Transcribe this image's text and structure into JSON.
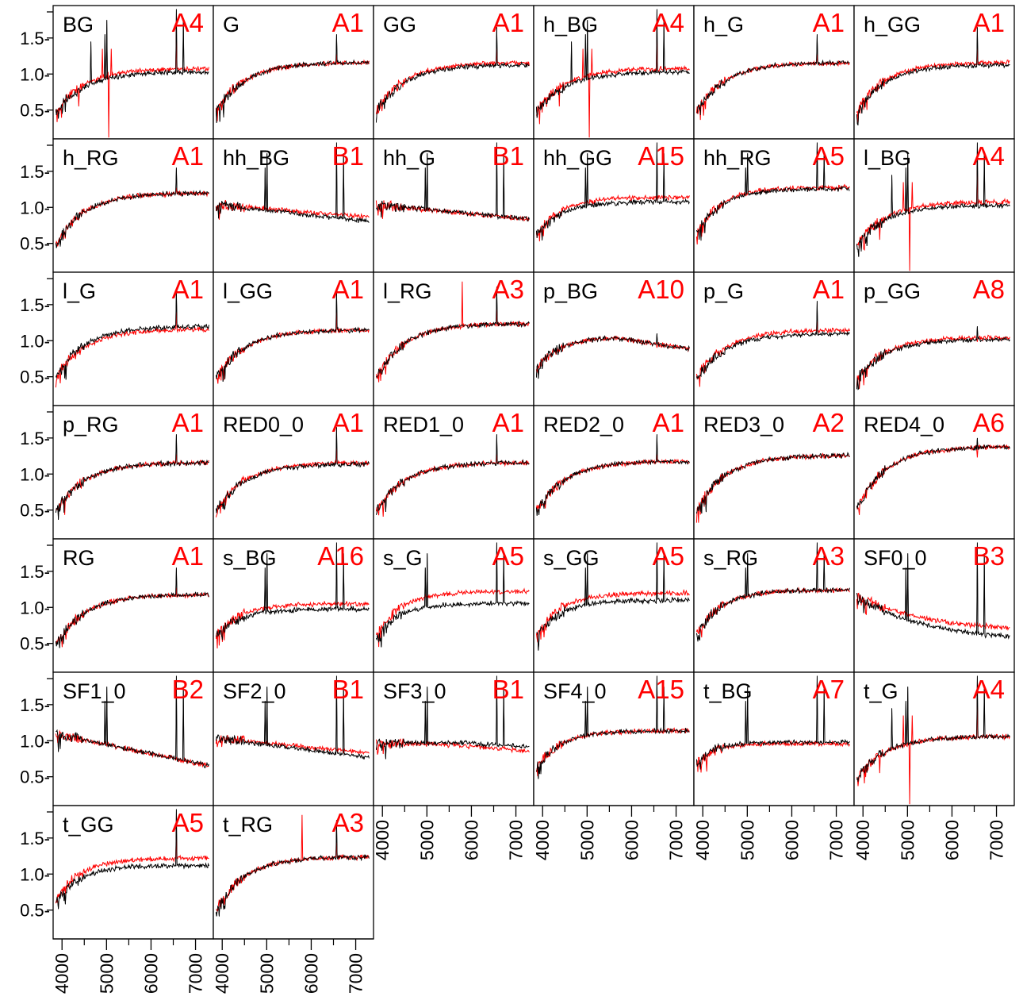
{
  "colors": {
    "model": "#000000",
    "observed": "#ff0000",
    "frame": "#000000"
  },
  "chart_data": {
    "type": "line",
    "layout": "small multiples, 6 columns x 7 rows",
    "xlim": [
      3800,
      7400
    ],
    "ylim": [
      0.1,
      1.95
    ],
    "x_ticks": [
      4000,
      5000,
      6000,
      7000
    ],
    "x_tick_labels": [
      "4000",
      "5000",
      "6000",
      "7000"
    ],
    "y_ticks": [
      0.5,
      1.0,
      1.5
    ],
    "y_tick_labels": [
      "0.5-",
      "1.0-",
      "1.5-"
    ],
    "series_colors": [
      "#000000",
      "#ff0000"
    ],
    "panels": [
      {
        "name": "BG",
        "code": "A4",
        "shape": "rise",
        "end": 1.03,
        "red_end": 1.08,
        "spikes": "strong",
        "halpha": 1.9
      },
      {
        "name": "G",
        "code": "A1",
        "shape": "rise",
        "end": 1.16,
        "red_end": 1.16,
        "spikes": "weak",
        "halpha": 1.55
      },
      {
        "name": "GG",
        "code": "A1",
        "shape": "rise",
        "end": 1.13,
        "red_end": 1.16,
        "spikes": "weak",
        "halpha": 1.65
      },
      {
        "name": "h_BG",
        "code": "A4",
        "shape": "rise",
        "end": 1.03,
        "red_end": 1.08,
        "spikes": "strong",
        "halpha": 1.9
      },
      {
        "name": "h_G",
        "code": "A1",
        "shape": "rise",
        "end": 1.16,
        "red_end": 1.16,
        "spikes": "weak",
        "halpha": 1.55
      },
      {
        "name": "h_GG",
        "code": "A1",
        "shape": "rise",
        "end": 1.13,
        "red_end": 1.16,
        "spikes": "weak",
        "halpha": 1.65
      },
      {
        "name": "h_RG",
        "code": "A1",
        "shape": "rise",
        "end": 1.2,
        "red_end": 1.2,
        "spikes": "weak",
        "halpha": 1.55
      },
      {
        "name": "hh_BG",
        "code": "B1",
        "shape": "flat_fall",
        "end": 0.8,
        "red_end": 0.86,
        "spikes": "emission",
        "halpha": 1.9
      },
      {
        "name": "hh_G",
        "code": "B1",
        "shape": "flat_fall",
        "end": 0.83,
        "red_end": 0.83,
        "spikes": "emission",
        "halpha": 1.9
      },
      {
        "name": "hh_GG",
        "code": "A15",
        "shape": "slow_rise",
        "end": 1.08,
        "red_end": 1.14,
        "spikes": "emission",
        "halpha": 1.9
      },
      {
        "name": "hh_RG",
        "code": "A5",
        "shape": "slow_rise",
        "end": 1.26,
        "red_end": 1.28,
        "spikes": "emission",
        "halpha": 1.9
      },
      {
        "name": "l_BG",
        "code": "A4",
        "shape": "rise",
        "end": 1.03,
        "red_end": 1.08,
        "spikes": "strong",
        "halpha": 1.9
      },
      {
        "name": "l_G",
        "code": "A1",
        "shape": "rise",
        "end": 1.2,
        "red_end": 1.16,
        "spikes": "weak",
        "halpha": 1.7
      },
      {
        "name": "l_GG",
        "code": "A1",
        "shape": "rise",
        "end": 1.15,
        "red_end": 1.15,
        "spikes": "weak",
        "halpha": 1.7
      },
      {
        "name": "l_RG",
        "code": "A3",
        "shape": "rise",
        "end": 1.24,
        "red_end": 1.24,
        "spikes": "red_peak",
        "halpha": 1.75
      },
      {
        "name": "p_BG",
        "code": "A10",
        "shape": "rise_fall",
        "end": 0.88,
        "red_end": 1.02,
        "spikes": "weak",
        "halpha": 1.1
      },
      {
        "name": "p_G",
        "code": "A1",
        "shape": "rise",
        "end": 1.1,
        "red_end": 1.15,
        "spikes": "weak",
        "halpha": 1.55
      },
      {
        "name": "p_GG",
        "code": "A8",
        "shape": "rise",
        "end": 1.02,
        "red_end": 1.05,
        "spikes": "weak",
        "halpha": 1.2
      },
      {
        "name": "p_RG",
        "code": "A1",
        "shape": "rise",
        "end": 1.16,
        "red_end": 1.16,
        "spikes": "weak",
        "halpha": 1.55
      },
      {
        "name": "RED0_0",
        "code": "A1",
        "shape": "rise",
        "end": 1.14,
        "red_end": 1.16,
        "spikes": "weak",
        "halpha": 1.65
      },
      {
        "name": "RED1_0",
        "code": "A1",
        "shape": "rise",
        "end": 1.16,
        "red_end": 1.16,
        "spikes": "weak",
        "halpha": 1.55
      },
      {
        "name": "RED2_0",
        "code": "A1",
        "shape": "rise",
        "end": 1.18,
        "red_end": 1.18,
        "spikes": "weak",
        "halpha": 1.55
      },
      {
        "name": "RED3_0",
        "code": "A2",
        "shape": "rise",
        "end": 1.26,
        "red_end": 1.26,
        "spikes": "none",
        "halpha": 1.3
      },
      {
        "name": "RED4_0",
        "code": "A6",
        "shape": "rise",
        "end": 1.38,
        "red_end": 1.38,
        "spikes": "weak",
        "halpha": 1.5
      },
      {
        "name": "RG",
        "code": "A1",
        "shape": "rise",
        "end": 1.18,
        "red_end": 1.18,
        "spikes": "weak",
        "halpha": 1.55
      },
      {
        "name": "s_BG",
        "code": "A16",
        "shape": "slow_rise",
        "end": 0.98,
        "red_end": 1.05,
        "spikes": "emission",
        "halpha": 1.9
      },
      {
        "name": "s_G",
        "code": "A5",
        "shape": "slow_rise",
        "end": 1.06,
        "red_end": 1.22,
        "spikes": "emission",
        "halpha": 1.9
      },
      {
        "name": "s_GG",
        "code": "A5",
        "shape": "slow_rise",
        "end": 1.1,
        "red_end": 1.2,
        "spikes": "emission",
        "halpha": 1.9
      },
      {
        "name": "s_RG",
        "code": "A3",
        "shape": "slow_rise",
        "end": 1.24,
        "red_end": 1.24,
        "spikes": "emission",
        "halpha": 1.9
      },
      {
        "name": "SF0_0",
        "code": "B3",
        "shape": "fall",
        "end": 0.52,
        "red_end": 0.66,
        "spikes": "emission",
        "halpha": 1.9
      },
      {
        "name": "SF1_0",
        "code": "B2",
        "shape": "fall_mild",
        "end": 0.64,
        "red_end": 0.64,
        "spikes": "emission",
        "halpha": 1.9
      },
      {
        "name": "SF2_0",
        "code": "B1",
        "shape": "flat_fall",
        "end": 0.76,
        "red_end": 0.82,
        "spikes": "emission",
        "halpha": 1.9
      },
      {
        "name": "SF3_0",
        "code": "B1",
        "shape": "flat",
        "end": 0.9,
        "red_end": 0.84,
        "spikes": "emission",
        "halpha": 1.9
      },
      {
        "name": "SF4_0",
        "code": "A15",
        "shape": "slow_rise",
        "end": 1.14,
        "red_end": 1.14,
        "spikes": "emission",
        "halpha": 1.9
      },
      {
        "name": "t_BG",
        "code": "A7",
        "shape": "flat_rise",
        "end": 0.98,
        "red_end": 0.96,
        "spikes": "emission",
        "halpha": 1.9
      },
      {
        "name": "t_G",
        "code": "A4",
        "shape": "rise",
        "end": 1.06,
        "red_end": 1.06,
        "spikes": "strong",
        "halpha": 1.9
      },
      {
        "name": "t_GG",
        "code": "A5",
        "shape": "slow_rise",
        "end": 1.12,
        "red_end": 1.22,
        "spikes": "weak",
        "halpha": 1.9
      },
      {
        "name": "t_RG",
        "code": "A3",
        "shape": "rise",
        "end": 1.24,
        "red_end": 1.24,
        "spikes": "red_peak",
        "halpha": 1.75
      }
    ]
  }
}
